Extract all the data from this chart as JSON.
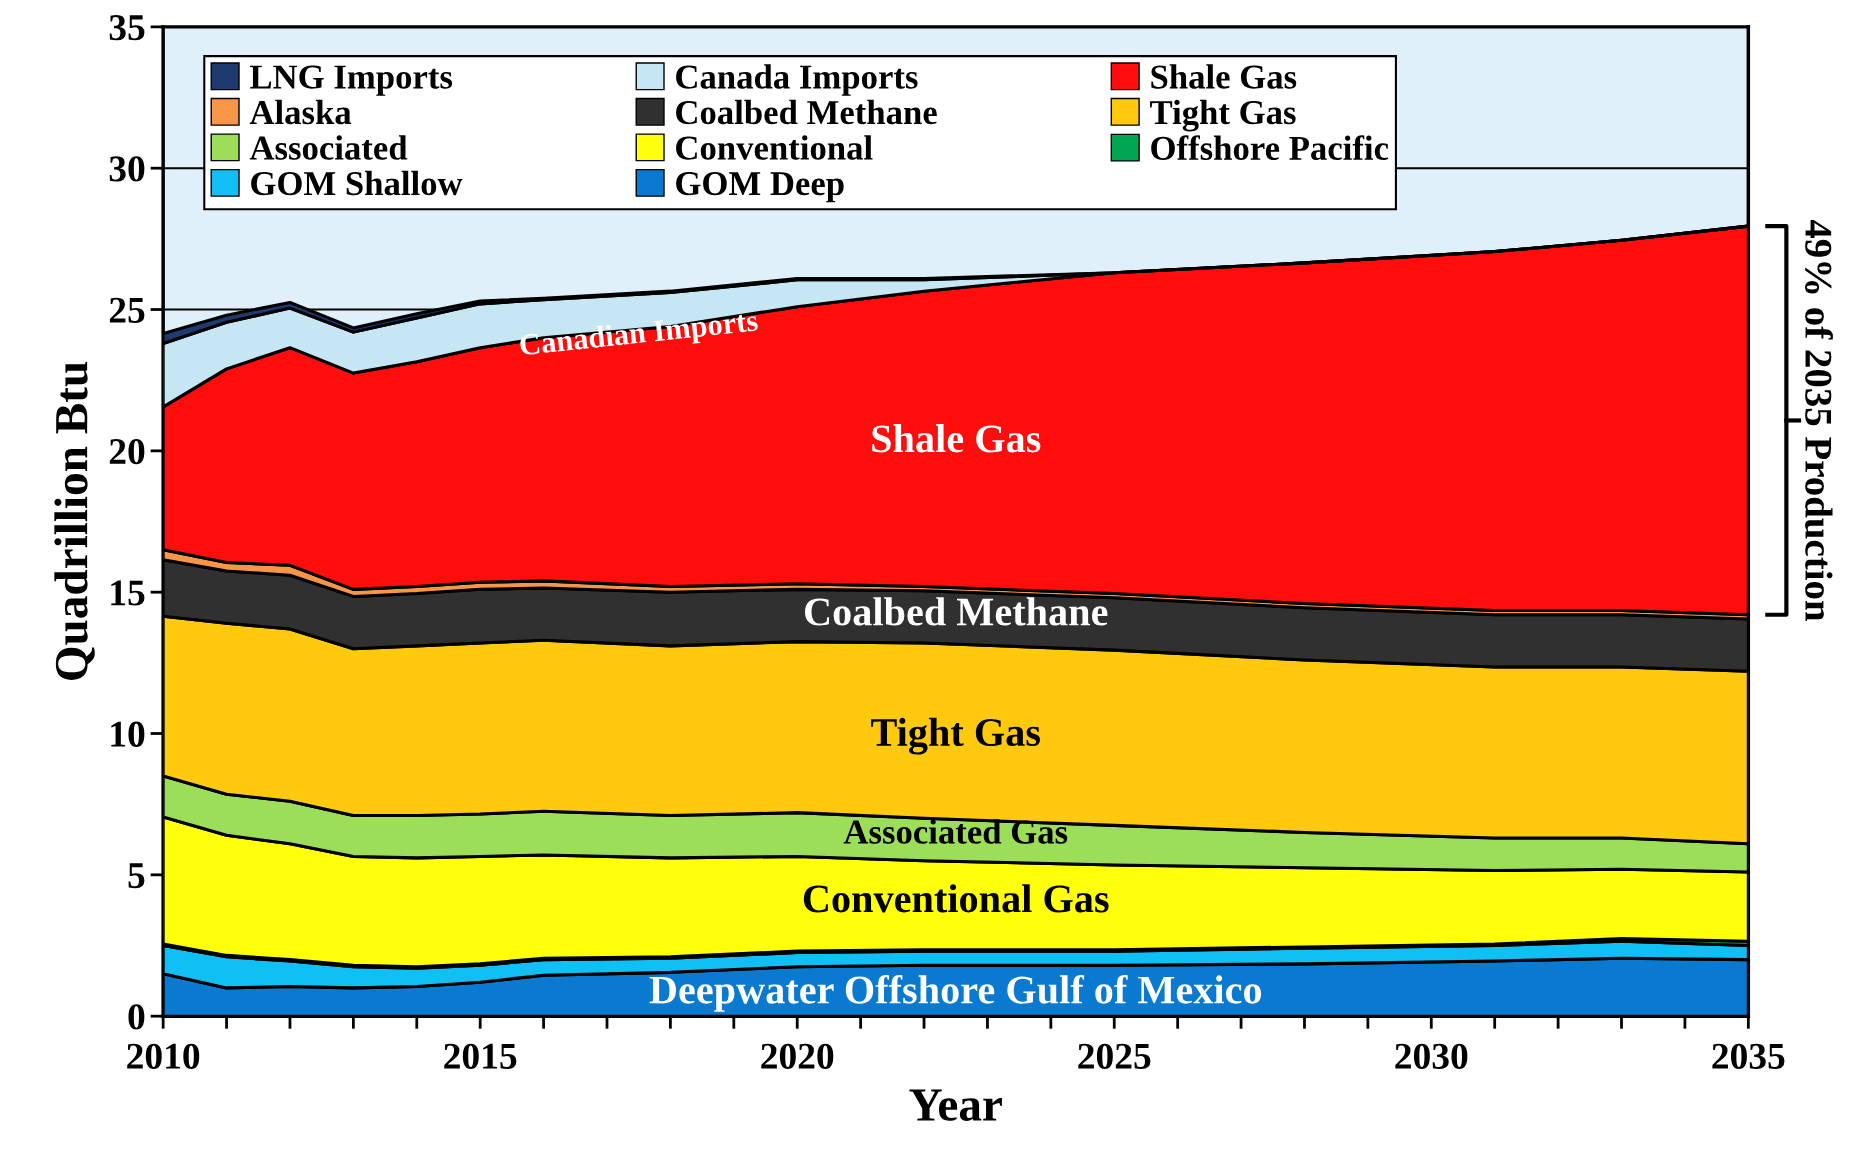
{
  "chart_data": {
    "type": "area",
    "stacked": true,
    "xlabel": "Year",
    "ylabel": "Quadrillion Btu",
    "x": [
      2010,
      2011,
      2012,
      2013,
      2014,
      2015,
      2016,
      2018,
      2020,
      2022,
      2025,
      2028,
      2031,
      2033,
      2035
    ],
    "series": [
      {
        "name": "GOM Deep",
        "color": "#0a7ad0",
        "values": [
          1.5,
          1.0,
          1.05,
          1.0,
          1.05,
          1.2,
          1.45,
          1.55,
          1.75,
          1.8,
          1.8,
          1.85,
          1.95,
          2.05,
          2.0
        ]
      },
      {
        "name": "GOM Shallow",
        "color": "#10c0f5",
        "values": [
          1.0,
          1.1,
          0.9,
          0.75,
          0.65,
          0.6,
          0.55,
          0.5,
          0.5,
          0.5,
          0.5,
          0.55,
          0.55,
          0.6,
          0.5
        ]
      },
      {
        "name": "Offshore Pacific",
        "color": "#00a651",
        "values": [
          0.05,
          0.05,
          0.05,
          0.05,
          0.05,
          0.05,
          0.05,
          0.05,
          0.05,
          0.05,
          0.05,
          0.05,
          0.05,
          0.1,
          0.15
        ]
      },
      {
        "name": "Conventional",
        "color": "#ffff0a",
        "values": [
          4.5,
          4.25,
          4.1,
          3.85,
          3.85,
          3.8,
          3.65,
          3.5,
          3.35,
          3.15,
          3.0,
          2.8,
          2.6,
          2.45,
          2.45
        ]
      },
      {
        "name": "Associated",
        "color": "#9cdd5a",
        "values": [
          1.45,
          1.45,
          1.5,
          1.45,
          1.5,
          1.5,
          1.55,
          1.5,
          1.55,
          1.5,
          1.4,
          1.25,
          1.15,
          1.1,
          1.0
        ]
      },
      {
        "name": "Tight Gas",
        "color": "#ffc90e",
        "values": [
          5.65,
          6.05,
          6.1,
          5.9,
          6.0,
          6.05,
          6.05,
          6.0,
          6.05,
          6.2,
          6.2,
          6.1,
          6.05,
          6.05,
          6.1
        ]
      },
      {
        "name": "Coalbed Methane",
        "color": "#303030",
        "values": [
          2.0,
          1.85,
          1.9,
          1.85,
          1.85,
          1.9,
          1.85,
          1.9,
          1.85,
          1.85,
          1.85,
          1.85,
          1.85,
          1.85,
          1.85
        ]
      },
      {
        "name": "Alaska",
        "color": "#f79646",
        "values": [
          0.35,
          0.3,
          0.35,
          0.25,
          0.25,
          0.25,
          0.25,
          0.2,
          0.2,
          0.15,
          0.15,
          0.15,
          0.15,
          0.15,
          0.15
        ]
      },
      {
        "name": "Shale Gas",
        "color": "#ff0d0d",
        "values": [
          5.05,
          6.85,
          7.7,
          7.65,
          7.95,
          8.3,
          8.6,
          9.2,
          9.8,
          10.45,
          11.35,
          12.05,
          12.7,
          13.1,
          13.75
        ]
      },
      {
        "name": "Canada Imports",
        "color": "#c5e6f2",
        "values": [
          2.25,
          1.65,
          1.4,
          1.45,
          1.55,
          1.55,
          1.35,
          1.2,
          0.95,
          0.4,
          0,
          0,
          0,
          0,
          0
        ]
      },
      {
        "name": "LNG Imports",
        "color": "#1f3a6e",
        "values": [
          0.35,
          0.25,
          0.2,
          0.15,
          0.15,
          0.1,
          0.05,
          0.05,
          0.05,
          0.05,
          0,
          0,
          0,
          0,
          0
        ]
      }
    ],
    "xlim": [
      2010,
      2035
    ],
    "xticks": [
      2010,
      {
        "value": 2011,
        "label": null
      },
      {
        "value": 2012,
        "label": null
      },
      {
        "value": 2013,
        "label": null
      },
      {
        "value": 2014,
        "label": null
      },
      2015,
      {
        "value": 2016,
        "label": null
      },
      {
        "value": 2017,
        "label": null
      },
      {
        "value": 2018,
        "label": null
      },
      {
        "value": 2019,
        "label": null
      },
      2020,
      {
        "value": 2021,
        "label": null
      },
      {
        "value": 2022,
        "label": null
      },
      {
        "value": 2023,
        "label": null
      },
      {
        "value": 2024,
        "label": null
      },
      2025,
      {
        "value": 2026,
        "label": null
      },
      {
        "value": 2027,
        "label": null
      },
      {
        "value": 2028,
        "label": null
      },
      {
        "value": 2029,
        "label": null
      },
      2030,
      {
        "value": 2031,
        "label": null
      },
      {
        "value": 2032,
        "label": null
      },
      {
        "value": 2033,
        "label": null
      },
      {
        "value": 2034,
        "label": null
      },
      2035
    ],
    "ylim": [
      0,
      35
    ],
    "yticks": [
      0,
      5,
      10,
      15,
      20,
      25,
      30,
      35
    ],
    "grid": "y",
    "legend": "top left",
    "annotations": [
      "Canadian Imports",
      "Shale Gas",
      "Coalbed Methane",
      "Tight Gas",
      "Associated Gas",
      "Conventional Gas",
      "Deepwater Offshore Gulf of Mexico",
      {
        "text": "49% of 2035 Production",
        "x": 2035,
        "y": 21
      }
    ]
  }
}
